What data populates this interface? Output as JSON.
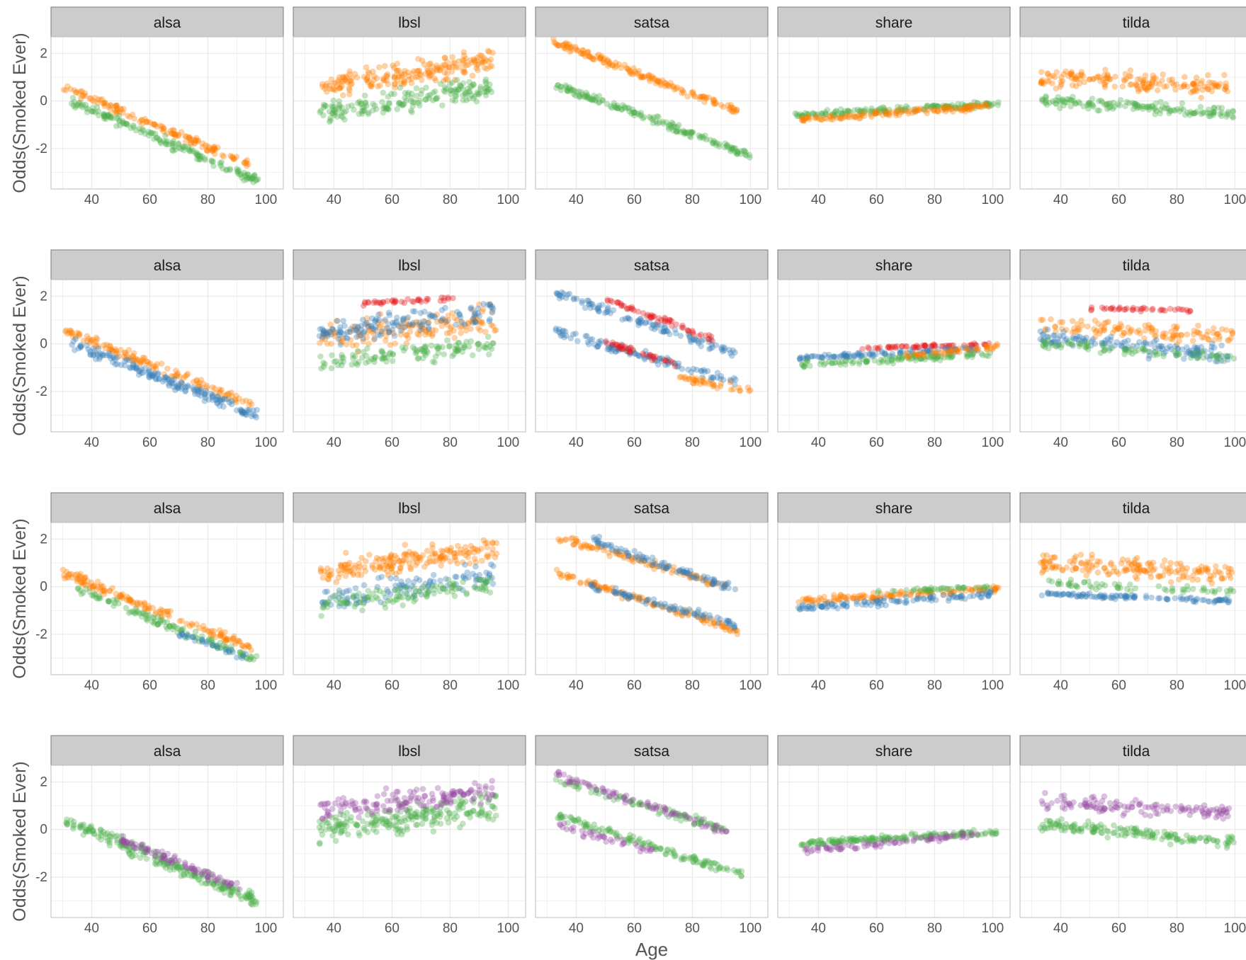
{
  "colors": {
    "strip_bg": "#cccccc",
    "strip_border": "#7a7a7a",
    "grid": "#ebebeb",
    "panel_border": "#bdbdbd",
    "tick_text": "#555555",
    "orange": "#ff7f00",
    "green": "#4daf4a",
    "blue": "#377eb8",
    "red": "#e41a1c",
    "purple": "#984ea3"
  },
  "chart_data": {
    "type": "scatter",
    "facet_labels": [
      "alsa",
      "lbsl",
      "satsa",
      "share",
      "tilda"
    ],
    "xlabel": "Age",
    "ylabel": "Odds(Smoked Ever)",
    "xlim": [
      26,
      106
    ],
    "ylim": [
      -3.7,
      2.7
    ],
    "x_ticks": [
      40,
      60,
      80,
      100
    ],
    "y_ticks": [
      -2,
      0,
      2
    ],
    "x_tick_labels": [
      "40",
      "60",
      "80",
      "100"
    ],
    "y_tick_labels": [
      "-2",
      "0",
      "2"
    ],
    "grid": true,
    "point_alpha": 0.35,
    "rows": [
      {
        "series": {
          "alsa": [
            {
              "color": "orange",
              "x": [
                30,
                95
              ],
              "y": [
                0.6,
                -2.7
              ],
              "spread": 0.25,
              "n": 140
            },
            {
              "color": "green",
              "x": [
                33,
                98
              ],
              "y": [
                0.0,
                -3.4
              ],
              "spread": 0.3,
              "n": 160
            }
          ],
          "lbsl": [
            {
              "color": "orange",
              "x": [
                35,
                95
              ],
              "y": [
                0.6,
                1.7
              ],
              "spread": 0.7,
              "n": 200
            },
            {
              "color": "green",
              "x": [
                35,
                95
              ],
              "y": [
                -0.6,
                0.6
              ],
              "spread": 0.7,
              "n": 180
            }
          ],
          "satsa": [
            {
              "color": "orange",
              "x": [
                32,
                97
              ],
              "y": [
                2.5,
                -0.5
              ],
              "spread": 0.25,
              "n": 160
            },
            {
              "color": "green",
              "x": [
                33,
                100
              ],
              "y": [
                0.7,
                -2.3
              ],
              "spread": 0.25,
              "n": 170
            }
          ],
          "share": [
            {
              "color": "green",
              "x": [
                32,
                102
              ],
              "y": [
                -0.6,
                -0.1
              ],
              "spread": 0.2,
              "n": 150
            },
            {
              "color": "orange",
              "x": [
                33,
                100
              ],
              "y": [
                -0.8,
                -0.2
              ],
              "spread": 0.2,
              "n": 130
            }
          ],
          "tilda": [
            {
              "color": "orange",
              "x": [
                33,
                98
              ],
              "y": [
                1.0,
                0.6
              ],
              "spread": 0.6,
              "n": 170
            },
            {
              "color": "green",
              "x": [
                33,
                100
              ],
              "y": [
                0.0,
                -0.5
              ],
              "spread": 0.35,
              "n": 150
            }
          ]
        }
      },
      {
        "series": {
          "alsa": [
            {
              "color": "orange",
              "x": [
                31,
                96
              ],
              "y": [
                0.6,
                -2.6
              ],
              "spread": 0.3,
              "n": 130
            },
            {
              "color": "blue",
              "x": [
                33,
                97
              ],
              "y": [
                0.0,
                -3.0
              ],
              "spread": 0.35,
              "n": 170
            }
          ],
          "lbsl": [
            {
              "color": "orange",
              "x": [
                35,
                96
              ],
              "y": [
                0.2,
                1.0
              ],
              "spread": 0.9,
              "n": 150
            },
            {
              "color": "blue",
              "x": [
                35,
                95
              ],
              "y": [
                0.4,
                1.4
              ],
              "spread": 0.7,
              "n": 140
            },
            {
              "color": "green",
              "x": [
                35,
                95
              ],
              "y": [
                -0.8,
                0.0
              ],
              "spread": 0.6,
              "n": 120
            },
            {
              "color": "red",
              "x": [
                50,
                82
              ],
              "y": [
                1.7,
                1.9
              ],
              "spread": 0.15,
              "n": 40
            }
          ],
          "satsa": [
            {
              "color": "blue",
              "x": [
                33,
                95
              ],
              "y": [
                2.1,
                -0.4
              ],
              "spread": 0.3,
              "n": 110
            },
            {
              "color": "red",
              "x": [
                50,
                90
              ],
              "y": [
                1.9,
                0.1
              ],
              "spread": 0.2,
              "n": 60
            },
            {
              "color": "blue",
              "x": [
                33,
                95
              ],
              "y": [
                0.5,
                -1.6
              ],
              "spread": 0.3,
              "n": 110
            },
            {
              "color": "red",
              "x": [
                50,
                75
              ],
              "y": [
                0.1,
                -0.9
              ],
              "spread": 0.2,
              "n": 40
            },
            {
              "color": "orange",
              "x": [
                75,
                100
              ],
              "y": [
                -1.4,
                -2.0
              ],
              "spread": 0.25,
              "n": 40
            }
          ],
          "share": [
            {
              "color": "red",
              "x": [
                55,
                100
              ],
              "y": [
                -0.2,
                0.0
              ],
              "spread": 0.1,
              "n": 60
            },
            {
              "color": "blue",
              "x": [
                33,
                95
              ],
              "y": [
                -0.6,
                -0.2
              ],
              "spread": 0.15,
              "n": 110
            },
            {
              "color": "green",
              "x": [
                33,
                100
              ],
              "y": [
                -0.9,
                -0.4
              ],
              "spread": 0.2,
              "n": 110
            },
            {
              "color": "orange",
              "x": [
                70,
                102
              ],
              "y": [
                -0.5,
                -0.1
              ],
              "spread": 0.15,
              "n": 50
            }
          ],
          "tilda": [
            {
              "color": "red",
              "x": [
                50,
                85
              ],
              "y": [
                1.5,
                1.4
              ],
              "spread": 0.1,
              "n": 40
            },
            {
              "color": "orange",
              "x": [
                33,
                100
              ],
              "y": [
                0.8,
                0.3
              ],
              "spread": 0.5,
              "n": 120
            },
            {
              "color": "blue",
              "x": [
                33,
                98
              ],
              "y": [
                0.3,
                -0.5
              ],
              "spread": 0.5,
              "n": 140
            },
            {
              "color": "green",
              "x": [
                33,
                100
              ],
              "y": [
                0.0,
                -0.6
              ],
              "spread": 0.3,
              "n": 80
            }
          ]
        }
      },
      {
        "series": {
          "alsa": [
            {
              "color": "orange",
              "x": [
                30,
                95
              ],
              "y": [
                0.6,
                -2.6
              ],
              "spread": 0.3,
              "n": 150
            },
            {
              "color": "green",
              "x": [
                33,
                97
              ],
              "y": [
                0.0,
                -3.1
              ],
              "spread": 0.3,
              "n": 120
            },
            {
              "color": "blue",
              "x": [
                70,
                95
              ],
              "y": [
                -2.0,
                -3.0
              ],
              "spread": 0.25,
              "n": 30
            }
          ],
          "lbsl": [
            {
              "color": "orange",
              "x": [
                35,
                96
              ],
              "y": [
                0.6,
                1.6
              ],
              "spread": 0.7,
              "n": 190
            },
            {
              "color": "blue",
              "x": [
                35,
                95
              ],
              "y": [
                -0.6,
                0.6
              ],
              "spread": 0.8,
              "n": 110
            },
            {
              "color": "green",
              "x": [
                35,
                95
              ],
              "y": [
                -0.8,
                0.2
              ],
              "spread": 0.6,
              "n": 110
            }
          ],
          "satsa": [
            {
              "color": "orange",
              "x": [
                33,
                92
              ],
              "y": [
                2.1,
                0.0
              ],
              "spread": 0.25,
              "n": 100
            },
            {
              "color": "blue",
              "x": [
                45,
                95
              ],
              "y": [
                2.0,
                -0.1
              ],
              "spread": 0.25,
              "n": 90
            },
            {
              "color": "orange",
              "x": [
                33,
                97
              ],
              "y": [
                0.6,
                -1.9
              ],
              "spread": 0.25,
              "n": 120
            },
            {
              "color": "blue",
              "x": [
                45,
                95
              ],
              "y": [
                0.0,
                -1.6
              ],
              "spread": 0.25,
              "n": 80
            }
          ],
          "share": [
            {
              "color": "orange",
              "x": [
                33,
                102
              ],
              "y": [
                -0.6,
                -0.1
              ],
              "spread": 0.2,
              "n": 130
            },
            {
              "color": "blue",
              "x": [
                33,
                100
              ],
              "y": [
                -0.9,
                -0.3
              ],
              "spread": 0.2,
              "n": 110
            },
            {
              "color": "green",
              "x": [
                60,
                100
              ],
              "y": [
                -0.2,
                0.0
              ],
              "spread": 0.1,
              "n": 40
            }
          ],
          "tilda": [
            {
              "color": "orange",
              "x": [
                33,
                100
              ],
              "y": [
                1.0,
                0.5
              ],
              "spread": 0.6,
              "n": 170
            },
            {
              "color": "blue",
              "x": [
                33,
                98
              ],
              "y": [
                -0.3,
                -0.6
              ],
              "spread": 0.15,
              "n": 110
            },
            {
              "color": "green",
              "x": [
                33,
                100
              ],
              "y": [
                0.2,
                -0.2
              ],
              "spread": 0.3,
              "n": 60
            }
          ]
        }
      },
      {
        "series": {
          "alsa": [
            {
              "color": "green",
              "x": [
                31,
                97
              ],
              "y": [
                0.4,
                -3.0
              ],
              "spread": 0.4,
              "n": 230
            },
            {
              "color": "purple",
              "x": [
                50,
                92
              ],
              "y": [
                -0.4,
                -2.5
              ],
              "spread": 0.3,
              "n": 90
            }
          ],
          "lbsl": [
            {
              "color": "green",
              "x": [
                35,
                96
              ],
              "y": [
                0.0,
                1.0
              ],
              "spread": 0.9,
              "n": 220
            },
            {
              "color": "purple",
              "x": [
                35,
                95
              ],
              "y": [
                0.8,
                1.6
              ],
              "spread": 0.7,
              "n": 150
            }
          ],
          "satsa": [
            {
              "color": "green",
              "x": [
                33,
                92
              ],
              "y": [
                2.1,
                0.0
              ],
              "spread": 0.25,
              "n": 90
            },
            {
              "color": "purple",
              "x": [
                33,
                92
              ],
              "y": [
                2.3,
                -0.1
              ],
              "spread": 0.25,
              "n": 80
            },
            {
              "color": "green",
              "x": [
                33,
                97
              ],
              "y": [
                0.6,
                -1.9
              ],
              "spread": 0.25,
              "n": 130
            },
            {
              "color": "purple",
              "x": [
                33,
                70
              ],
              "y": [
                0.2,
                -1.0
              ],
              "spread": 0.25,
              "n": 40
            }
          ],
          "share": [
            {
              "color": "green",
              "x": [
                33,
                102
              ],
              "y": [
                -0.6,
                -0.1
              ],
              "spread": 0.2,
              "n": 170
            },
            {
              "color": "purple",
              "x": [
                35,
                95
              ],
              "y": [
                -0.9,
                -0.2
              ],
              "spread": 0.2,
              "n": 80
            }
          ],
          "tilda": [
            {
              "color": "purple",
              "x": [
                33,
                98
              ],
              "y": [
                1.2,
                0.7
              ],
              "spread": 0.5,
              "n": 130
            },
            {
              "color": "green",
              "x": [
                33,
                100
              ],
              "y": [
                0.2,
                -0.5
              ],
              "spread": 0.4,
              "n": 160
            }
          ]
        }
      }
    ]
  }
}
